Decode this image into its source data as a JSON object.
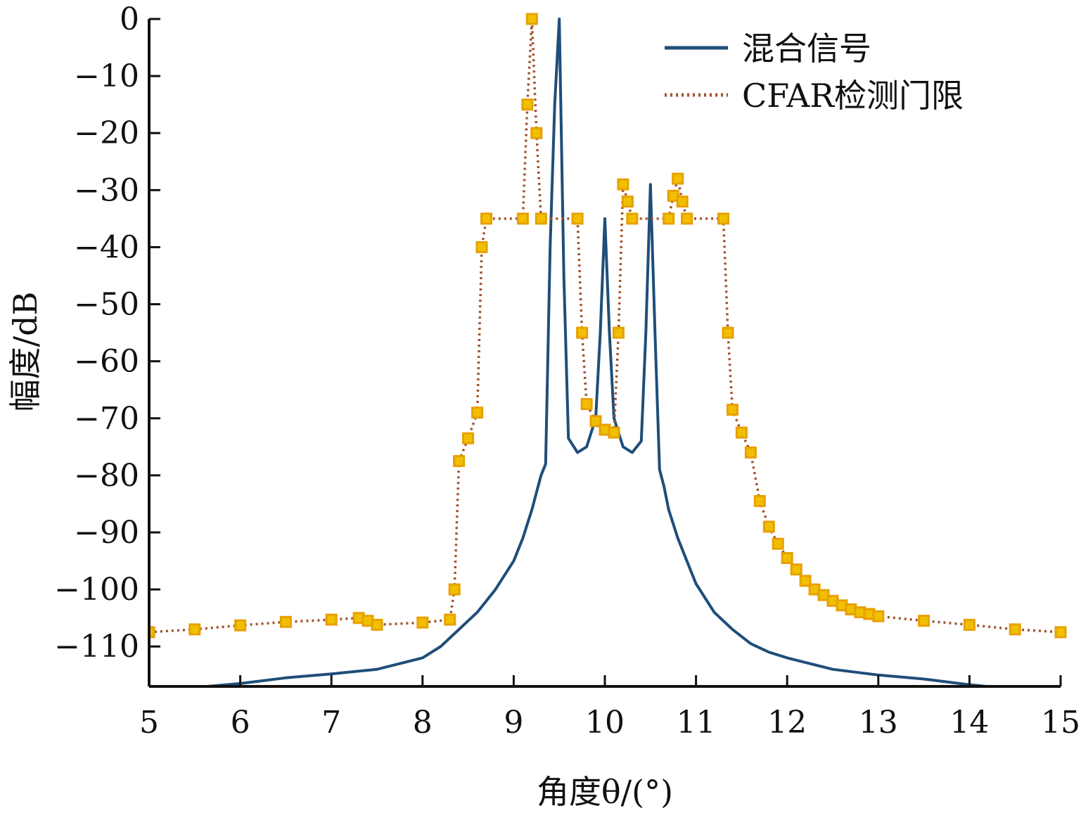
{
  "chart_data": {
    "type": "line",
    "xlabel": "角度θ/(°)",
    "ylabel": "幅度/dB",
    "xlim": [
      5,
      15
    ],
    "ylim": [
      -117,
      0
    ],
    "xticks": [
      5,
      6,
      7,
      8,
      9,
      10,
      11,
      12,
      13,
      14,
      15
    ],
    "yticks": [
      0,
      -10,
      -20,
      -30,
      -40,
      -50,
      -60,
      -70,
      -80,
      -90,
      -100,
      -110
    ],
    "grid": false,
    "legend_position": "top-right",
    "colors": {
      "mixed": "#1f4e79",
      "cfar_line": "#a0522d",
      "cfar_marker": "#e8a000",
      "axis": "#111111"
    },
    "series": [
      {
        "name": "混合信号",
        "style": "solid",
        "x": [
          5.0,
          5.5,
          6.0,
          6.5,
          7.0,
          7.5,
          8.0,
          8.2,
          8.4,
          8.6,
          8.8,
          9.0,
          9.1,
          9.2,
          9.3,
          9.35,
          9.4,
          9.45,
          9.5,
          9.55,
          9.6,
          9.7,
          9.8,
          9.9,
          9.95,
          10.0,
          10.05,
          10.1,
          10.2,
          10.3,
          10.4,
          10.45,
          10.5,
          10.55,
          10.6,
          10.65,
          10.7,
          10.8,
          10.9,
          11.0,
          11.2,
          11.4,
          11.6,
          11.8,
          12.0,
          12.5,
          13.0,
          13.5,
          14.0,
          14.5,
          15.0
        ],
        "y": [
          -117.5,
          -117.2,
          -116.5,
          -115.5,
          -114.8,
          -114.0,
          -112.0,
          -110.0,
          -107.0,
          -104.0,
          -100.0,
          -95.0,
          -91.0,
          -86.0,
          -80.0,
          -78.0,
          -40.0,
          -15.0,
          0.0,
          -45.0,
          -73.5,
          -76.0,
          -75.0,
          -70.0,
          -55.0,
          -35.0,
          -55.0,
          -70.0,
          -75.0,
          -76.0,
          -74.0,
          -55.0,
          -29.0,
          -55.0,
          -79.0,
          -82.0,
          -86.0,
          -91.0,
          -95.0,
          -99.0,
          -104.0,
          -107.0,
          -109.5,
          -111.0,
          -112.0,
          -114.0,
          -115.0,
          -115.7,
          -116.7,
          -117.5,
          -118.0
        ]
      },
      {
        "name": "CFAR检测门限",
        "style": "dotted-markers",
        "x": [
          5.0,
          5.5,
          6.0,
          6.5,
          7.0,
          7.3,
          7.4,
          7.5,
          8.0,
          8.3,
          8.35,
          8.4,
          8.5,
          8.6,
          8.65,
          8.7,
          9.1,
          9.15,
          9.2,
          9.25,
          9.3,
          9.7,
          9.75,
          9.8,
          9.9,
          10.0,
          10.1,
          10.15,
          10.2,
          10.25,
          10.3,
          10.7,
          10.75,
          10.8,
          10.85,
          10.9,
          11.3,
          11.35,
          11.4,
          11.5,
          11.6,
          11.7,
          11.8,
          11.9,
          12.0,
          12.1,
          12.2,
          12.3,
          12.4,
          12.5,
          12.6,
          12.7,
          12.8,
          12.9,
          13.0,
          13.5,
          14.0,
          14.5,
          15.0
        ],
        "y": [
          -107.5,
          -107.0,
          -106.3,
          -105.7,
          -105.3,
          -105.0,
          -105.5,
          -106.2,
          -105.8,
          -105.3,
          -100.0,
          -77.5,
          -73.5,
          -69.0,
          -40.0,
          -35.0,
          -35.0,
          -15.0,
          0.0,
          -20.0,
          -35.0,
          -35.0,
          -55.0,
          -67.5,
          -70.5,
          -72.0,
          -72.5,
          -55.0,
          -29.0,
          -32.0,
          -35.0,
          -35.0,
          -31.0,
          -28.0,
          -32.0,
          -35.0,
          -35.0,
          -55.0,
          -68.5,
          -72.5,
          -76.0,
          -84.5,
          -89.0,
          -92.0,
          -94.5,
          -96.5,
          -98.5,
          -100.0,
          -101.0,
          -102.0,
          -102.8,
          -103.5,
          -104.0,
          -104.3,
          -104.7,
          -105.5,
          -106.2,
          -107.0,
          -107.5
        ]
      }
    ]
  }
}
